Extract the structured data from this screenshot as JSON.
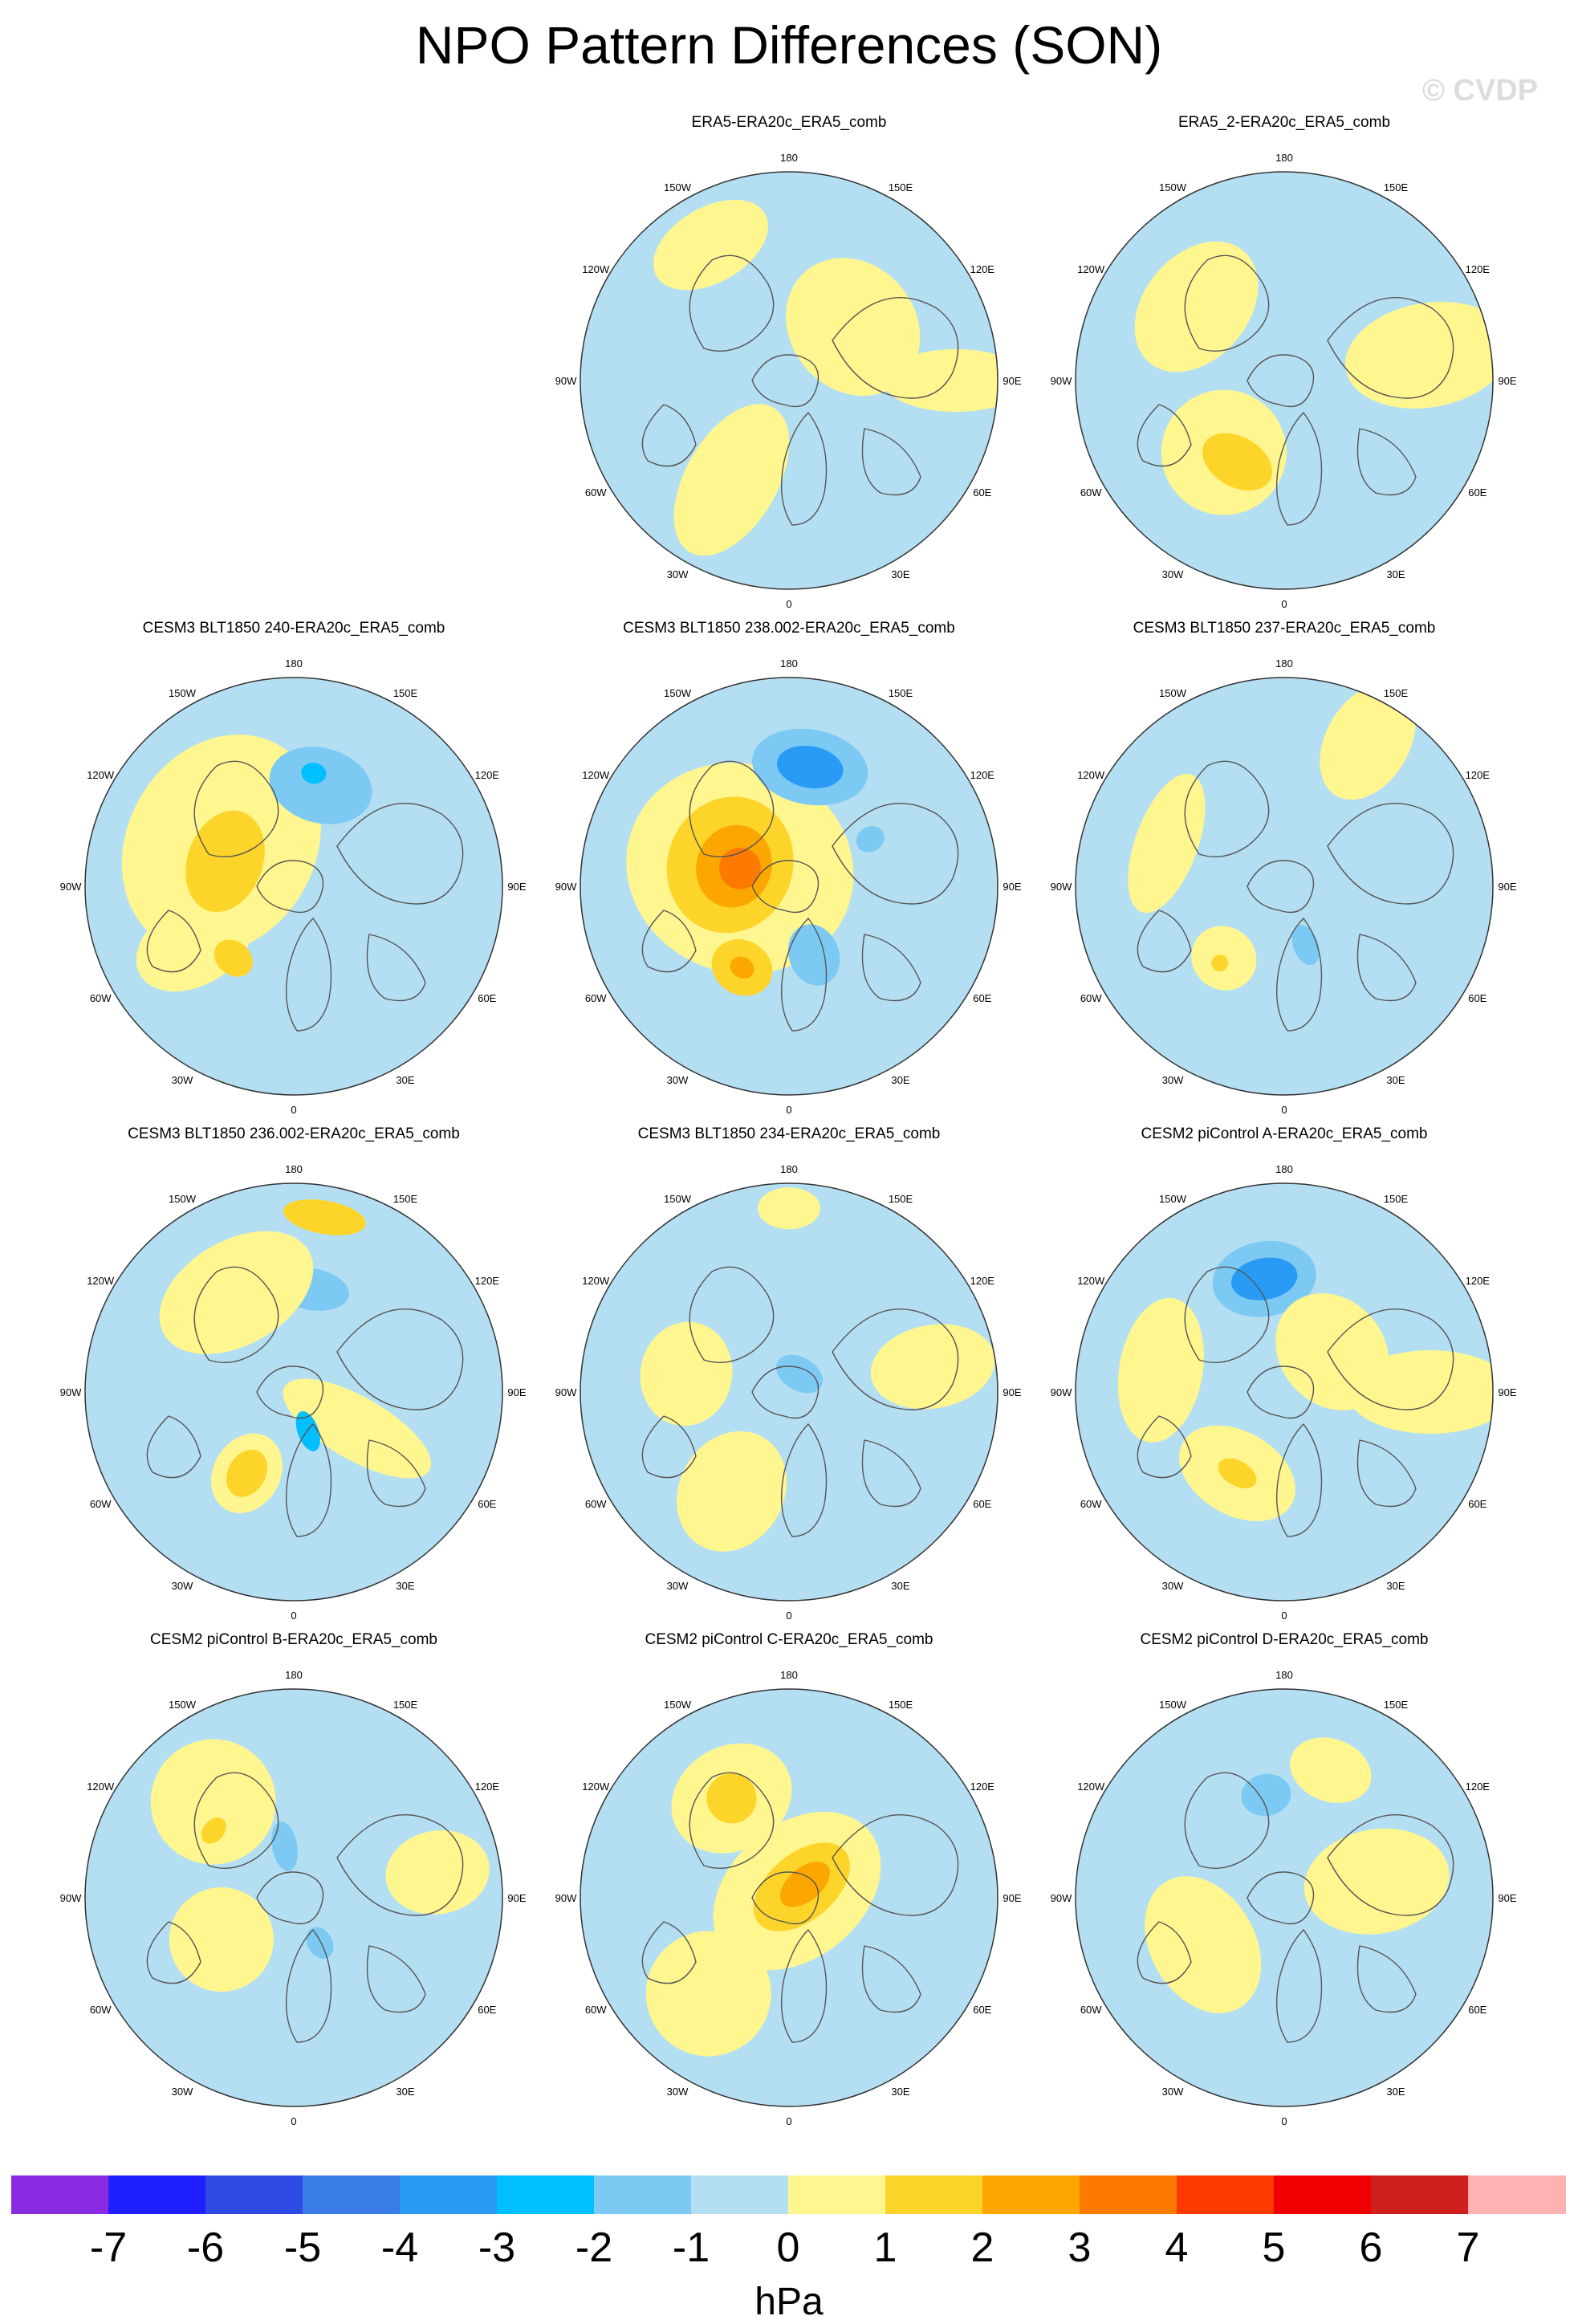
{
  "title": "NPO Pattern Differences (SON)",
  "watermark": "© CVDP",
  "panels": [
    {
      "label": "ERA5-ERA20c_ERA5_comb",
      "blobs": [
        {
          "lon": -30,
          "r": 0.55,
          "rx": 0.22,
          "ry": 0.4,
          "level": 1
        },
        {
          "lon": 130,
          "r": 0.4,
          "rx": 0.35,
          "ry": 0.3,
          "level": 1
        },
        {
          "lon": -150,
          "r": 0.75,
          "rx": 0.3,
          "ry": 0.18,
          "level": 1
        },
        {
          "lon": 90,
          "r": 0.8,
          "rx": 0.15,
          "ry": 0.35,
          "level": 1
        }
      ]
    },
    {
      "label": "ERA5_2-ERA20c_ERA5_comb",
      "blobs": [
        {
          "lon": -30,
          "r": 0.45,
          "rx": 0.18,
          "ry": 0.12,
          "level": 2
        },
        {
          "lon": -40,
          "r": 0.45,
          "rx": 0.3,
          "ry": 0.3,
          "level": 1
        },
        {
          "lon": -130,
          "r": 0.55,
          "rx": 0.35,
          "ry": 0.25,
          "level": 1
        },
        {
          "lon": 100,
          "r": 0.7,
          "rx": 0.25,
          "ry": 0.4,
          "level": 1
        }
      ]
    },
    {
      "label": "CESM3 BLT1850 240-ERA20c_ERA5_comb",
      "blobs": [
        {
          "lon": -120,
          "r": 0.4,
          "rx": 0.55,
          "ry": 0.45,
          "level": 1
        },
        {
          "lon": -110,
          "r": 0.35,
          "rx": 0.25,
          "ry": 0.18,
          "level": 2
        },
        {
          "lon": -40,
          "r": 0.45,
          "rx": 0.1,
          "ry": 0.08,
          "level": 2
        },
        {
          "lon": 165,
          "r": 0.5,
          "rx": 0.25,
          "ry": 0.18,
          "level": -1
        },
        {
          "lon": 170,
          "r": 0.55,
          "rx": 0.06,
          "ry": 0.05,
          "level": -2
        },
        {
          "lon": -60,
          "r": 0.55,
          "rx": 0.2,
          "ry": 0.3,
          "level": 1
        }
      ]
    },
    {
      "label": "CESM3 BLT1850 238.002-ERA20c_ERA5_comb",
      "blobs": [
        {
          "lon": -110,
          "r": 0.25,
          "rx": 0.5,
          "ry": 0.55,
          "level": 1
        },
        {
          "lon": -110,
          "r": 0.3,
          "rx": 0.33,
          "ry": 0.3,
          "level": 2
        },
        {
          "lon": -110,
          "r": 0.28,
          "rx": 0.2,
          "ry": 0.18,
          "level": 3
        },
        {
          "lon": -110,
          "r": 0.25,
          "rx": 0.1,
          "ry": 0.1,
          "level": 4
        },
        {
          "lon": -30,
          "r": 0.45,
          "rx": 0.15,
          "ry": 0.13,
          "level": 2
        },
        {
          "lon": -30,
          "r": 0.45,
          "rx": 0.06,
          "ry": 0.05,
          "level": 3
        },
        {
          "lon": 170,
          "r": 0.58,
          "rx": 0.28,
          "ry": 0.18,
          "level": -1
        },
        {
          "lon": 170,
          "r": 0.58,
          "rx": 0.16,
          "ry": 0.1,
          "level": -3
        },
        {
          "lon": 20,
          "r": 0.35,
          "rx": 0.12,
          "ry": 0.15,
          "level": -1
        },
        {
          "lon": 120,
          "r": 0.45,
          "rx": 0.06,
          "ry": 0.07,
          "level": -1
        }
      ]
    },
    {
      "label": "CESM3 BLT1850 237-ERA20c_ERA5_comb",
      "blobs": [
        {
          "lon": 150,
          "r": 0.8,
          "rx": 0.2,
          "ry": 0.3,
          "level": 1
        },
        {
          "lon": -40,
          "r": 0.45,
          "rx": 0.16,
          "ry": 0.15,
          "level": 1
        },
        {
          "lon": -40,
          "r": 0.48,
          "rx": 0.04,
          "ry": 0.04,
          "level": 2
        },
        {
          "lon": 20,
          "r": 0.3,
          "rx": 0.06,
          "ry": 0.1,
          "level": -1
        },
        {
          "lon": -110,
          "r": 0.6,
          "rx": 0.35,
          "ry": 0.15,
          "level": 1
        }
      ]
    },
    {
      "label": "CESM3 BLT1850 236.002-ERA20c_ERA5_comb",
      "blobs": [
        {
          "lon": 170,
          "r": 0.85,
          "rx": 0.2,
          "ry": 0.08,
          "level": 2
        },
        {
          "lon": -30,
          "r": 0.45,
          "rx": 0.16,
          "ry": 0.2,
          "level": 1
        },
        {
          "lon": -30,
          "r": 0.45,
          "rx": 0.09,
          "ry": 0.12,
          "level": 2
        },
        {
          "lon": 170,
          "r": 0.5,
          "rx": 0.18,
          "ry": 0.1,
          "level": -1
        },
        {
          "lon": -150,
          "r": 0.55,
          "rx": 0.4,
          "ry": 0.25,
          "level": 1
        },
        {
          "lon": 20,
          "r": 0.2,
          "rx": 0.05,
          "ry": 0.1,
          "level": -2
        },
        {
          "lon": 60,
          "r": 0.35,
          "rx": 0.15,
          "ry": 0.4,
          "level": 1
        }
      ]
    },
    {
      "label": "CESM3 BLT1850 234-ERA20c_ERA5_comb",
      "blobs": [
        {
          "lon": -30,
          "r": 0.55,
          "rx": 0.25,
          "ry": 0.3,
          "level": 1
        },
        {
          "lon": 180,
          "r": 0.88,
          "rx": 0.15,
          "ry": 0.1,
          "level": 1
        },
        {
          "lon": -100,
          "r": 0.5,
          "rx": 0.25,
          "ry": 0.22,
          "level": 1
        },
        {
          "lon": 150,
          "r": 0.1,
          "rx": 0.12,
          "ry": 0.08,
          "level": -1
        },
        {
          "lon": 100,
          "r": 0.7,
          "rx": 0.2,
          "ry": 0.3,
          "level": 1
        }
      ]
    },
    {
      "label": "CESM2 piControl A-ERA20c_ERA5_comb",
      "blobs": [
        {
          "lon": -170,
          "r": 0.55,
          "rx": 0.25,
          "ry": 0.18,
          "level": -1
        },
        {
          "lon": -170,
          "r": 0.55,
          "rx": 0.16,
          "ry": 0.1,
          "level": -3
        },
        {
          "lon": -30,
          "r": 0.45,
          "rx": 0.3,
          "ry": 0.2,
          "level": 1
        },
        {
          "lon": -30,
          "r": 0.45,
          "rx": 0.1,
          "ry": 0.06,
          "level": 2
        },
        {
          "lon": 130,
          "r": 0.3,
          "rx": 0.3,
          "ry": 0.25,
          "level": 1
        },
        {
          "lon": 90,
          "r": 0.7,
          "rx": 0.2,
          "ry": 0.4,
          "level": 1
        },
        {
          "lon": -100,
          "r": 0.6,
          "rx": 0.35,
          "ry": 0.2,
          "level": 1
        }
      ]
    },
    {
      "label": "CESM2 piControl B-ERA20c_ERA5_comb",
      "blobs": [
        {
          "lon": -140,
          "r": 0.6,
          "rx": 0.3,
          "ry": 0.3,
          "level": 1
        },
        {
          "lon": -130,
          "r": 0.5,
          "rx": 0.07,
          "ry": 0.05,
          "level": 2
        },
        {
          "lon": -170,
          "r": 0.25,
          "rx": 0.06,
          "ry": 0.12,
          "level": -1
        },
        {
          "lon": 30,
          "r": 0.25,
          "rx": 0.06,
          "ry": 0.08,
          "level": -1
        },
        {
          "lon": -60,
          "r": 0.4,
          "rx": 0.25,
          "ry": 0.25,
          "level": 1
        },
        {
          "lon": 100,
          "r": 0.7,
          "rx": 0.2,
          "ry": 0.25,
          "level": 1
        }
      ]
    },
    {
      "label": "CESM2 piControl C-ERA20c_ERA5_comb",
      "blobs": [
        {
          "lon": 130,
          "r": 0.05,
          "rx": 0.32,
          "ry": 0.45,
          "level": 1
        },
        {
          "lon": 130,
          "r": 0.08,
          "rx": 0.16,
          "ry": 0.27,
          "level": 2
        },
        {
          "lon": 130,
          "r": 0.1,
          "rx": 0.08,
          "ry": 0.14,
          "level": 3
        },
        {
          "lon": -150,
          "r": 0.55,
          "rx": 0.12,
          "ry": 0.12,
          "level": 2
        },
        {
          "lon": -150,
          "r": 0.55,
          "rx": 0.3,
          "ry": 0.25,
          "level": 1
        },
        {
          "lon": -40,
          "r": 0.6,
          "rx": 0.3,
          "ry": 0.3,
          "level": 1
        }
      ]
    },
    {
      "label": "CESM2 piControl D-ERA20c_ERA5_comb",
      "blobs": [
        {
          "lon": -170,
          "r": 0.5,
          "rx": 0.12,
          "ry": 0.1,
          "level": -1
        },
        {
          "lon": 100,
          "r": 0.45,
          "rx": 0.25,
          "ry": 0.35,
          "level": 1
        },
        {
          "lon": -60,
          "r": 0.45,
          "rx": 0.35,
          "ry": 0.25,
          "level": 1
        },
        {
          "lon": 160,
          "r": 0.65,
          "rx": 0.2,
          "ry": 0.15,
          "level": 1
        }
      ]
    }
  ],
  "longitude_labels": [
    "180",
    "150E",
    "120E",
    "90E",
    "60E",
    "30E",
    "0",
    "30W",
    "60W",
    "90W",
    "120W",
    "150W"
  ],
  "colorbar": {
    "tick_labels": [
      "-7",
      "-6",
      "-5",
      "-4",
      "-3",
      "-2",
      "-1",
      "0",
      "1",
      "2",
      "3",
      "4",
      "5",
      "6",
      "7"
    ],
    "colors": [
      "#8a2be2",
      "#1f1fff",
      "#2e4be3",
      "#3a7ce8",
      "#2a9bf5",
      "#00bfff",
      "#7ccaf3",
      "#b4dff2",
      "#fff690",
      "#fdd52a",
      "#fca700",
      "#fd7a00",
      "#ff3a00",
      "#f00000",
      "#d01f1f",
      "#ffb2b2"
    ],
    "units": "hPa"
  },
  "palette": {
    "background_negative": "#b4dff2",
    "coast": "#555555",
    "circle": "#333333"
  }
}
